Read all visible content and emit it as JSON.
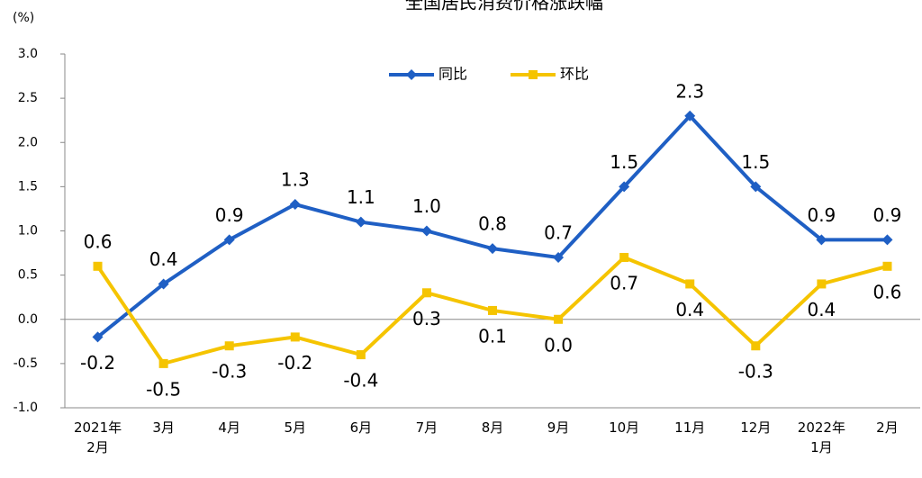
{
  "chart_data": {
    "type": "line",
    "title": "全国居民消费价格涨跌幅",
    "y_unit": "(%)",
    "categories": [
      "2021年\n2月",
      "3月",
      "4月",
      "5月",
      "6月",
      "7月",
      "8月",
      "9月",
      "10月",
      "11月",
      "12月",
      "2022年\n1月",
      "2月"
    ],
    "series": [
      {
        "name": "同比",
        "color": "#1f5fc4",
        "marker": "diamond",
        "values": [
          -0.2,
          0.4,
          0.9,
          1.3,
          1.1,
          1.0,
          0.8,
          0.7,
          1.5,
          2.3,
          1.5,
          0.9,
          0.9
        ],
        "value_labels": [
          "-0.2",
          "0.4",
          "0.9",
          "1.3",
          "1.1",
          "1.0",
          "0.8",
          "0.7",
          "1.5",
          "2.3",
          "1.5",
          "0.9",
          "0.9"
        ]
      },
      {
        "name": "环比",
        "color": "#f5c400",
        "marker": "square",
        "values": [
          0.6,
          -0.5,
          -0.3,
          -0.2,
          -0.4,
          0.3,
          0.1,
          0.0,
          0.7,
          0.4,
          -0.3,
          0.4,
          0.6
        ],
        "value_labels": [
          "0.6",
          "-0.5",
          "-0.3",
          "-0.2",
          "-0.4",
          "0.3",
          "0.1",
          "0.0",
          "0.7",
          "0.4",
          "-0.3",
          "0.4",
          "0.6"
        ]
      }
    ],
    "ylim": [
      -1.0,
      3.0
    ],
    "yticks": [
      {
        "value": 3,
        "label": "3.0"
      },
      2.5,
      {
        "value": 2,
        "label": "2.0"
      },
      1.5,
      {
        "value": 1,
        "label": "1.0"
      },
      0.5,
      {
        "value": 0,
        "label": "0.0"
      },
      -0.5,
      {
        "value": -1,
        "label": "-1.0"
      }
    ],
    "legend": "top",
    "grid": false
  }
}
